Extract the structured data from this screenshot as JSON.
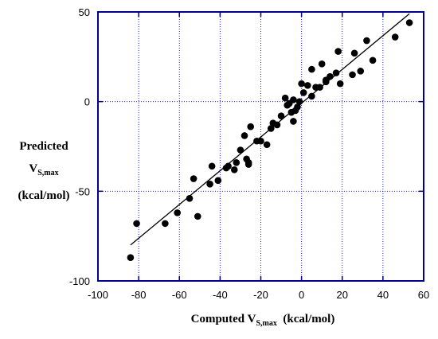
{
  "chart_data": {
    "type": "scatter",
    "xlabel_main": "Computed V",
    "xlabel_sub": "S,max",
    "xlabel_unit": "(kcal/mol)",
    "ylabel_line1": "Predicted",
    "ylabel_main": "V",
    "ylabel_sub": "S,max",
    "ylabel_unit": "(kcal/mol)",
    "xlim": [
      -100,
      60
    ],
    "ylim": [
      -100,
      50
    ],
    "xticks": [
      -100,
      -80,
      -60,
      -40,
      -20,
      0,
      20,
      40,
      60
    ],
    "yticks": [
      -100,
      -50,
      0,
      50
    ],
    "xtick_labels": [
      "-100",
      "-80",
      "-60",
      "-40",
      "-20",
      "0",
      "20",
      "40",
      "60"
    ],
    "ytick_labels": [
      "-100",
      "-50",
      "0",
      "50"
    ],
    "grid": true,
    "grid_color": "#1a1aff",
    "frame_color": "#00008b",
    "point_color": "#000000",
    "fit_line": {
      "x": [
        -84,
        53
      ],
      "y": [
        -80,
        49
      ]
    },
    "series": [
      {
        "points": [
          [
            -84,
            -87
          ],
          [
            -81,
            -68
          ],
          [
            -67,
            -68
          ],
          [
            -61,
            -62
          ],
          [
            -55,
            -54
          ],
          [
            -53,
            -43
          ],
          [
            -51,
            -64
          ],
          [
            -45,
            -46
          ],
          [
            -44,
            -36
          ],
          [
            -41,
            -44
          ],
          [
            -37,
            -37
          ],
          [
            -36,
            -36
          ],
          [
            -33,
            -38
          ],
          [
            -32,
            -34
          ],
          [
            -30,
            -27
          ],
          [
            -28,
            -19
          ],
          [
            -27,
            -32
          ],
          [
            -26,
            -35
          ],
          [
            -26,
            -34
          ],
          [
            -25,
            -14
          ],
          [
            -22,
            -22
          ],
          [
            -20,
            -22
          ],
          [
            -17,
            -24
          ],
          [
            -15,
            -15
          ],
          [
            -14,
            -12
          ],
          [
            -12,
            -13
          ],
          [
            -10,
            -8
          ],
          [
            -8,
            2
          ],
          [
            -7,
            -2
          ],
          [
            -6,
            -1
          ],
          [
            -5,
            -6
          ],
          [
            -4,
            1
          ],
          [
            -4,
            -11
          ],
          [
            -3,
            -5
          ],
          [
            -2,
            -3
          ],
          [
            -1,
            0
          ],
          [
            0,
            10
          ],
          [
            1,
            5
          ],
          [
            3,
            9
          ],
          [
            5,
            3
          ],
          [
            5,
            18
          ],
          [
            7,
            8
          ],
          [
            9,
            8
          ],
          [
            10,
            21
          ],
          [
            12,
            12
          ],
          [
            12,
            11
          ],
          [
            14,
            14
          ],
          [
            17,
            16
          ],
          [
            18,
            28
          ],
          [
            19,
            10
          ],
          [
            25,
            15
          ],
          [
            26,
            27
          ],
          [
            29,
            17
          ],
          [
            32,
            34
          ],
          [
            35,
            23
          ],
          [
            46,
            36
          ],
          [
            53,
            44
          ]
        ]
      }
    ]
  }
}
